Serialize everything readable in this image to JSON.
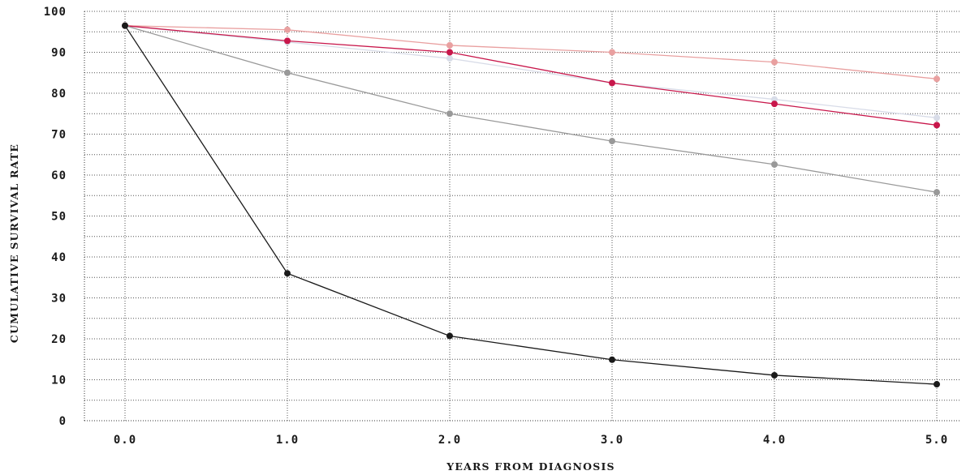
{
  "chart_data": {
    "type": "line",
    "title": "",
    "xlabel": "YEARS FROM DIAGNOSIS",
    "ylabel": "CUMULATIVE SURVIVAL RATE",
    "x": [
      0,
      1,
      2,
      3,
      4,
      5
    ],
    "x_tick_labels": [
      "0.0",
      "1.0",
      "2.0",
      "3.0",
      "4.0",
      "5.0"
    ],
    "y_ticks": [
      0,
      10,
      20,
      30,
      40,
      50,
      60,
      70,
      80,
      90,
      100
    ],
    "xlim": [
      -0.25,
      5.15
    ],
    "ylim": [
      0,
      100
    ],
    "grid": true,
    "legend": "none",
    "series": [
      {
        "color": "#d8dce8",
        "values": [
          96.5,
          92.5,
          88.5,
          82.5,
          78.5,
          74.0
        ]
      },
      {
        "color": "#e9a0a0",
        "values": [
          96.5,
          95.5,
          91.7,
          90.0,
          87.6,
          83.5
        ]
      },
      {
        "color": "#c8174b",
        "values": [
          96.5,
          92.8,
          90.0,
          82.5,
          77.4,
          72.2
        ]
      },
      {
        "color": "#999999",
        "values": [
          96.5,
          85.0,
          75.0,
          68.3,
          62.6,
          55.8
        ]
      },
      {
        "color": "#1a1a1a",
        "values": [
          96.5,
          36.0,
          20.7,
          14.9,
          11.1,
          8.9
        ]
      }
    ]
  }
}
